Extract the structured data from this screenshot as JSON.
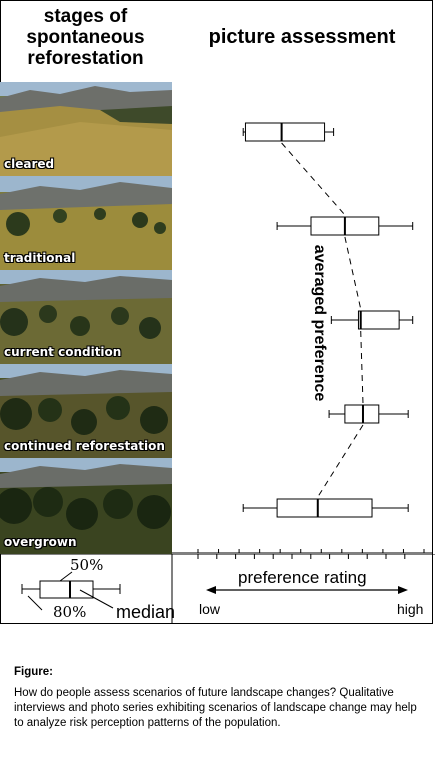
{
  "headers": {
    "left": "stages of spontaneous reforestation",
    "right": "picture assessment"
  },
  "stages": [
    "cleared",
    "traditional",
    "current condition",
    "continued reforestation",
    "overgrown"
  ],
  "chart_data": {
    "type": "boxplot",
    "categories": [
      "cleared",
      "traditional",
      "current condition",
      "continued reforestation",
      "overgrown"
    ],
    "series": [
      {
        "category": "cleared",
        "min": 2.0,
        "q1": 2.1,
        "median": 3.7,
        "q3": 5.6,
        "max": 6.0
      },
      {
        "category": "traditional",
        "min": 3.5,
        "q1": 5.0,
        "median": 6.5,
        "q3": 8.0,
        "max": 9.5
      },
      {
        "category": "current condition",
        "min": 5.9,
        "q1": 7.1,
        "median": 7.2,
        "q3": 8.9,
        "max": 9.5
      },
      {
        "category": "continued reforestation",
        "min": 5.8,
        "q1": 6.5,
        "median": 7.3,
        "q3": 8.0,
        "max": 9.3
      },
      {
        "category": "overgrown",
        "min": 2.0,
        "q1": 3.5,
        "median": 5.3,
        "q3": 7.7,
        "max": 9.3
      }
    ],
    "trend_label": "averaged preference",
    "trend_style": "dashed",
    "xlabel": "preference rating",
    "x_low_label": "low",
    "x_high_label": "high",
    "xlim": [
      0,
      10
    ],
    "ticks": 12
  },
  "legend": {
    "upper": "50%",
    "lower": "80%",
    "median": "median"
  },
  "caption": {
    "title": "Figure:",
    "text": "How do people assess scenarios of future landscape changes? Qualitative interviews and photo series exhibiting scenarios of landscape change may help to analyze risk perception patterns of the population."
  }
}
